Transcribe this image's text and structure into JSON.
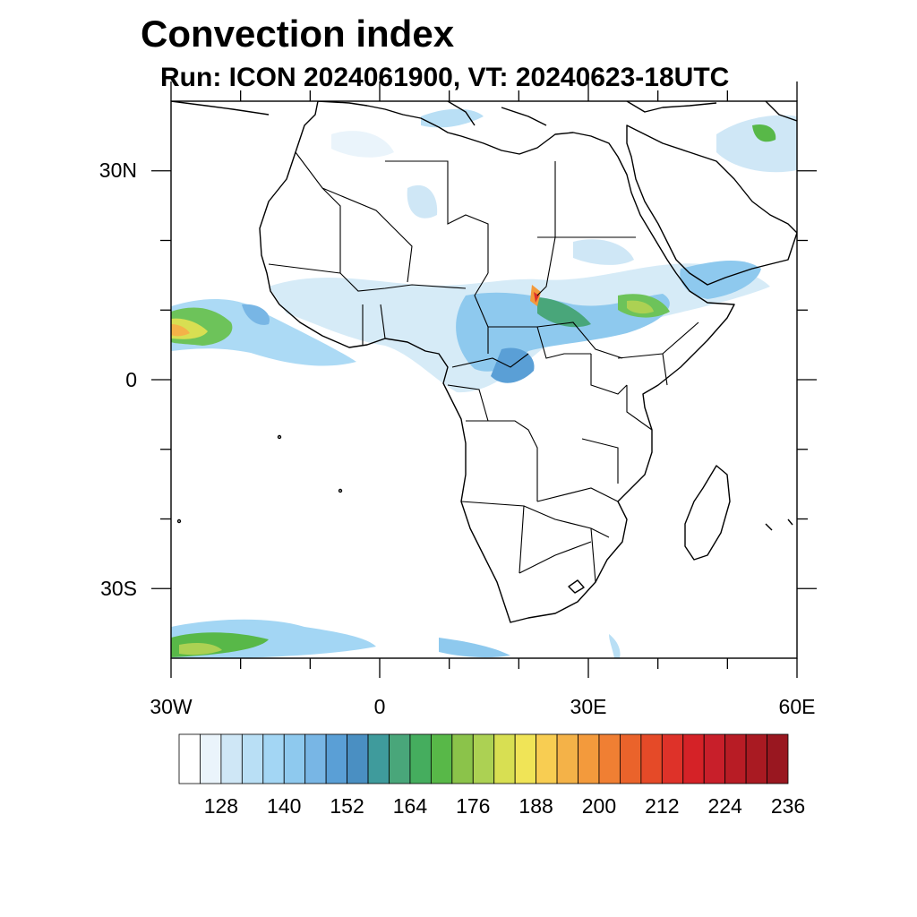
{
  "title": "Convection index",
  "subtitle": "Run: ICON 2024061900,  VT: 20240623-18UTC",
  "map": {
    "lon_range": [
      -30,
      60
    ],
    "lat_range": [
      -40,
      40
    ],
    "lon_ticks": [
      {
        "value": -30,
        "label": "30W"
      },
      {
        "value": 0,
        "label": "0"
      },
      {
        "value": 30,
        "label": "30E"
      },
      {
        "value": 60,
        "label": "60E"
      }
    ],
    "lat_ticks": [
      {
        "value": 30,
        "label": "30N"
      },
      {
        "value": 0,
        "label": "0"
      },
      {
        "value": -30,
        "label": "30S"
      }
    ],
    "minor_lon_ticks": [
      -20,
      -10,
      10,
      20,
      40,
      50
    ],
    "minor_lat_ticks": [
      20,
      10,
      -10,
      -20
    ]
  },
  "colorbar": {
    "colors": [
      "#ffffff",
      "#eaf4fb",
      "#cfe7f6",
      "#b9dff5",
      "#a3d6f4",
      "#8ec9ee",
      "#78b6e5",
      "#5a9fd6",
      "#4a8fc2",
      "#3f9b9c",
      "#49a67a",
      "#45ad5e",
      "#58b848",
      "#8bc34a",
      "#acd153",
      "#d8df52",
      "#f0e457",
      "#f8cd52",
      "#f4b248",
      "#f39a3c",
      "#f07f33",
      "#ea632b",
      "#e54a28",
      "#de3229",
      "#d52227",
      "#c81f2a",
      "#b81c25",
      "#a91a22",
      "#991720"
    ],
    "labels": [
      "128",
      "140",
      "152",
      "164",
      "176",
      "188",
      "200",
      "212",
      "224",
      "236"
    ]
  }
}
